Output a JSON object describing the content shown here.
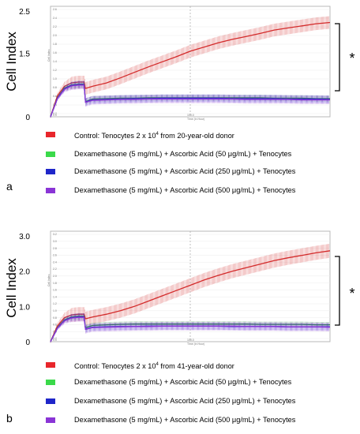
{
  "chart_data": [
    {
      "panel": "a",
      "type": "line",
      "ylabel": "Cell Index",
      "xlabel": "Time (in Hour)",
      "ylim": [
        0,
        2.5
      ],
      "y_ticks": [
        "0",
        "1.5",
        "2.5"
      ],
      "inner_y_ticks": [
        "2.6",
        "2.4",
        "2.2",
        "2.0",
        "1.8",
        "1.6",
        "1.4",
        "1.2",
        "1.0",
        "0.8",
        "0.6",
        "0.4",
        "0.2"
      ],
      "inner_x_ticks": [
        "0.0",
        "100.0"
      ],
      "significance": "*",
      "legend": [
        {
          "color": "#e8262b",
          "label_pre": "Control: Tenocytes 2 x 10",
          "sup": "4",
          "label_post": " from 20-year-old donor"
        },
        {
          "color": "#3ad94a",
          "label": "Dexamethasone (5 mg/mL) + Ascorbic Acid (50 μg/mL) + Tenocytes"
        },
        {
          "color": "#1f26c9",
          "label": "Dexamethasone (5 mg/mL) + Ascorbic Acid (250 μg/mL) + Tenocytes"
        },
        {
          "color": "#8a35d6",
          "label": "Dexamethasone (5 mg/mL) + Ascorbic Acid (500 μg/mL) + Tenocytes"
        }
      ],
      "x": [
        0,
        5,
        10,
        15,
        20,
        24,
        25,
        30,
        40,
        50,
        60,
        70,
        80,
        90,
        100,
        110,
        120,
        130,
        140,
        150,
        160,
        170,
        180,
        190,
        200
      ],
      "series": [
        {
          "color": "#d32b2b",
          "band": 0.15,
          "values": [
            0,
            0.5,
            0.72,
            0.8,
            0.82,
            0.82,
            0.67,
            0.72,
            0.8,
            0.92,
            1.05,
            1.18,
            1.3,
            1.42,
            1.55,
            1.65,
            1.75,
            1.83,
            1.9,
            1.97,
            2.05,
            2.1,
            2.15,
            2.2,
            2.23
          ]
        },
        {
          "color": "#2a8f3a",
          "band": 0.07,
          "values": [
            0,
            0.45,
            0.68,
            0.75,
            0.77,
            0.77,
            0.36,
            0.42,
            0.43,
            0.44,
            0.44,
            0.45,
            0.45,
            0.45,
            0.45,
            0.45,
            0.45,
            0.45,
            0.45,
            0.45,
            0.44,
            0.44,
            0.44,
            0.43,
            0.43
          ]
        },
        {
          "color": "#1f26c9",
          "band": 0.09,
          "values": [
            0,
            0.44,
            0.66,
            0.74,
            0.76,
            0.76,
            0.35,
            0.4,
            0.41,
            0.42,
            0.43,
            0.43,
            0.44,
            0.44,
            0.44,
            0.44,
            0.44,
            0.43,
            0.43,
            0.43,
            0.43,
            0.42,
            0.42,
            0.42,
            0.41
          ]
        },
        {
          "color": "#8a35d6",
          "band": 0.1,
          "values": [
            0,
            0.43,
            0.65,
            0.73,
            0.75,
            0.75,
            0.34,
            0.39,
            0.4,
            0.41,
            0.41,
            0.42,
            0.42,
            0.42,
            0.42,
            0.42,
            0.42,
            0.42,
            0.41,
            0.41,
            0.41,
            0.41,
            0.4,
            0.4,
            0.4
          ]
        }
      ]
    },
    {
      "panel": "b",
      "type": "line",
      "ylabel": "Cell Index",
      "xlabel": "Time (in Hour)",
      "ylim": [
        0,
        3.0
      ],
      "y_ticks": [
        "0",
        "1.0",
        "2.0",
        "3.0"
      ],
      "inner_y_ticks": [
        "3.2",
        "3.0",
        "2.8",
        "2.6",
        "2.4",
        "2.2",
        "2.0",
        "1.8",
        "1.6",
        "1.4",
        "1.2",
        "1.0",
        "0.8",
        "0.6",
        "0.4",
        "0.2"
      ],
      "inner_x_ticks": [
        "0.0",
        "100.0"
      ],
      "significance": "*",
      "legend": [
        {
          "color": "#e8262b",
          "label_pre": "Control: Tenocytes 2 x 10",
          "sup": "4",
          "label_post": " from 41-year-old donor"
        },
        {
          "color": "#3ad94a",
          "label": "Dexamethasone (5 mg/mL) + Ascorbic Acid (50 μg/mL) + Tenocytes"
        },
        {
          "color": "#1f26c9",
          "label": "Dexamethasone (5 mg/mL) + Ascorbic Acid (250 μg/mL) + Tenocytes"
        },
        {
          "color": "#8a35d6",
          "label": "Dexamethasone (5 mg/mL) + Ascorbic Acid (500 μg/mL) + Tenocytes"
        }
      ],
      "x": [
        0,
        5,
        10,
        15,
        20,
        24,
        25,
        30,
        40,
        50,
        60,
        70,
        80,
        90,
        100,
        110,
        120,
        130,
        140,
        150,
        160,
        170,
        180,
        190,
        200
      ],
      "series": [
        {
          "color": "#d32b2b",
          "band": 0.2,
          "values": [
            0,
            0.45,
            0.68,
            0.76,
            0.78,
            0.78,
            0.65,
            0.7,
            0.78,
            0.88,
            1.0,
            1.15,
            1.3,
            1.45,
            1.6,
            1.75,
            1.88,
            2.0,
            2.1,
            2.2,
            2.3,
            2.38,
            2.45,
            2.52,
            2.58
          ]
        },
        {
          "color": "#2a8f3a",
          "band": 0.08,
          "values": [
            0,
            0.4,
            0.62,
            0.7,
            0.72,
            0.72,
            0.4,
            0.46,
            0.48,
            0.49,
            0.5,
            0.5,
            0.5,
            0.5,
            0.5,
            0.5,
            0.5,
            0.5,
            0.5,
            0.49,
            0.49,
            0.49,
            0.49,
            0.48,
            0.48
          ]
        },
        {
          "color": "#1f26c9",
          "band": 0.1,
          "values": [
            0,
            0.39,
            0.6,
            0.68,
            0.7,
            0.7,
            0.36,
            0.41,
            0.42,
            0.43,
            0.43,
            0.44,
            0.44,
            0.44,
            0.44,
            0.44,
            0.44,
            0.43,
            0.43,
            0.43,
            0.43,
            0.42,
            0.42,
            0.42,
            0.42
          ]
        },
        {
          "color": "#8a35d6",
          "band": 0.12,
          "values": [
            0,
            0.38,
            0.59,
            0.67,
            0.69,
            0.69,
            0.35,
            0.4,
            0.41,
            0.42,
            0.43,
            0.43,
            0.44,
            0.44,
            0.44,
            0.44,
            0.44,
            0.44,
            0.43,
            0.43,
            0.43,
            0.42,
            0.42,
            0.42,
            0.41
          ]
        }
      ]
    }
  ],
  "panel_letters": [
    "a",
    "b"
  ]
}
